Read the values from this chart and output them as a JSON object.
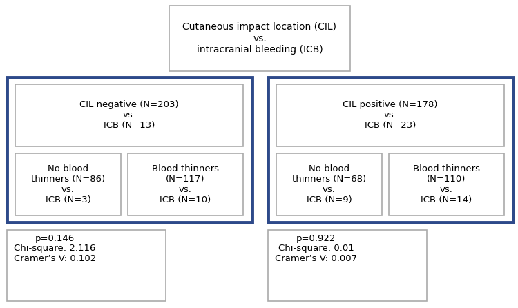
{
  "title_text": "Cutaneous impact location (CIL)\nvs.\nintracranial bleeding (ICB)",
  "left_group_title": "CIL negative (N=203)\nvs.\nICB (N=13)",
  "right_group_title": "CIL positive (N=178)\nvs.\nICB (N=23)",
  "left_sub1": "No blood\nthinners (N=86)\nvs.\nICB (N=3)",
  "left_sub2": "Blood thinners\n(N=117)\nvs.\nICB (N=10)",
  "right_sub1": "No blood\nthinners (N=68)\nvs.\nICB (N=9)",
  "right_sub2": "Blood thinners\n(N=110)\nvs.\nICB (N=14)",
  "left_stats": "p=0.146\nChi-square: 2.116\nCramer’s V: 0.102",
  "right_stats": "p=0.922\nChi-square: 0.01\nCramer’s V: 0.007",
  "dark_blue": "#2E4A8A",
  "white": "#FFFFFF",
  "border_gray": "#AAAAAA",
  "font_size": 9.5,
  "title_font_size": 10,
  "stats_font_size": 9.5
}
